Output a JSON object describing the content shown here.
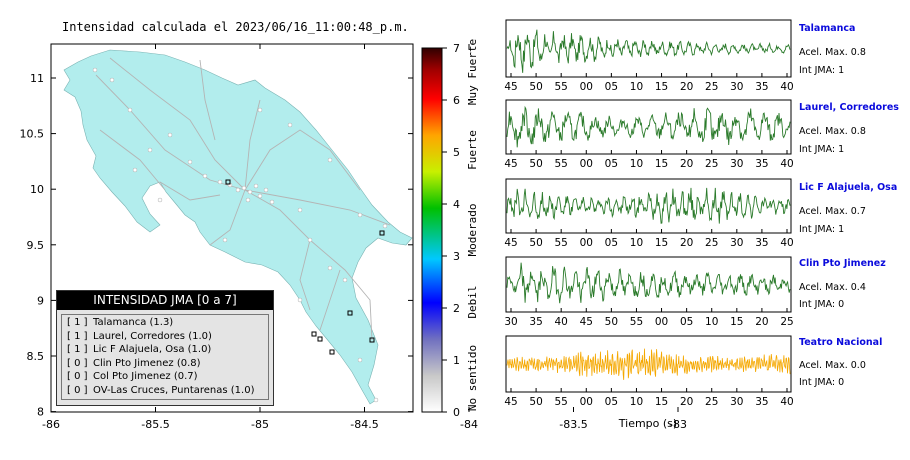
{
  "map": {
    "title": "Intensidad calculada el 2023/06/16_11:00:48_p.m.",
    "x_ticks": [
      "-86",
      "-85.5",
      "-85",
      "-84.5",
      "-84",
      "-83.5",
      "-83"
    ],
    "y_ticks": [
      "11",
      "10.5",
      "10",
      "9.5",
      "9",
      "8.5",
      "8"
    ],
    "land_color": "#b2eded",
    "road_color": "#b4b4b4"
  },
  "colorbar": {
    "ticks": [
      "0",
      "1",
      "2",
      "3",
      "4",
      "5",
      "6",
      "7"
    ],
    "labels": [
      "No sentido",
      "Debil",
      "Moderado",
      "Fuerte",
      "Muy Fuerte"
    ]
  },
  "legend": {
    "title": "INTENSIDAD JMA [0 a 7]",
    "items": [
      {
        "level": "[ 1 ]",
        "text": "Talamanca (1.3)"
      },
      {
        "level": "[ 1 ]",
        "text": "Laurel, Corredores (1.0)"
      },
      {
        "level": "[ 1 ]",
        "text": "Lic F Alajuela, Osa (1.0)"
      },
      {
        "level": "[ 0 ]",
        "text": "Clin Pto Jimenez (0.8)"
      },
      {
        "level": "[ 0 ]",
        "text": "Col Pto Jimenez (0.7)"
      },
      {
        "level": "[ 0 ]",
        "text": "OV-Las Cruces, Puntarenas (1.0)"
      }
    ]
  },
  "stations": [
    {
      "name": "Talamanca",
      "acel": "Acel. Max. 0.8",
      "int": "Int JMA: 1",
      "ticks": [
        "45",
        "50",
        "55",
        "00",
        "05",
        "10",
        "15",
        "20",
        "25",
        "30",
        "35",
        "40"
      ],
      "color": "#2a7a2a"
    },
    {
      "name": "Laurel, Corredores",
      "acel": "Acel. Max. 0.8",
      "int": "Int JMA: 1",
      "ticks": [
        "45",
        "50",
        "55",
        "00",
        "05",
        "10",
        "15",
        "20",
        "25",
        "30",
        "35",
        "40"
      ],
      "color": "#2a7a2a"
    },
    {
      "name": "Lic F Alajuela, Osa",
      "acel": "Acel. Max. 0.7",
      "int": "Int JMA: 1",
      "ticks": [
        "45",
        "50",
        "55",
        "00",
        "05",
        "10",
        "15",
        "20",
        "25",
        "30",
        "35",
        "40"
      ],
      "color": "#2a7a2a"
    },
    {
      "name": "Clin Pto Jimenez",
      "acel": "Acel. Max. 0.4",
      "int": "Int JMA: 0",
      "ticks": [
        "30",
        "35",
        "40",
        "45",
        "50",
        "55",
        "00",
        "05",
        "10",
        "15",
        "20",
        "25"
      ],
      "color": "#2a7a2a"
    },
    {
      "name": "Teatro Nacional",
      "acel": "Acel. Max. 0.0",
      "int": "Int JMA: 0",
      "ticks": [
        "45",
        "50",
        "55",
        "00",
        "05",
        "10",
        "15",
        "20",
        "25",
        "30",
        "35",
        "40"
      ],
      "color": "#f5a800"
    }
  ],
  "wave_xlabel": "Tiempo (s)"
}
